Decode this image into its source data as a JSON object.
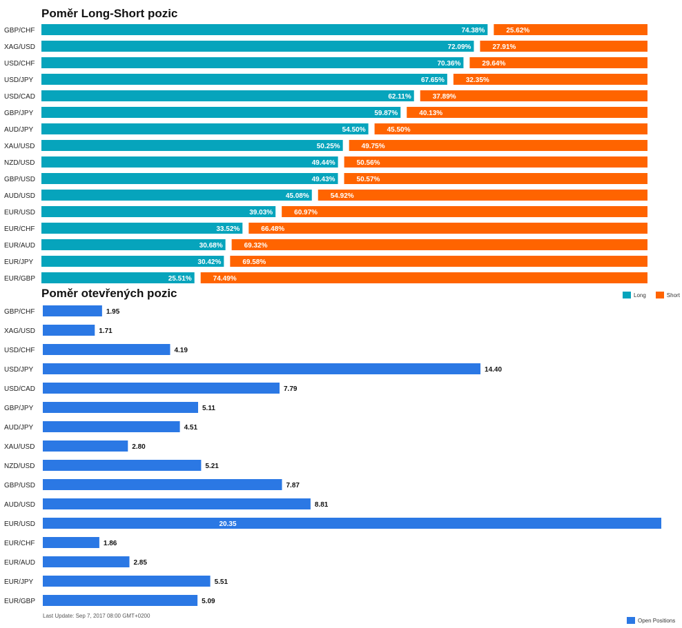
{
  "chart_data": [
    {
      "type": "bar",
      "orientation": "horizontal",
      "stacked": true,
      "title": "Poměr Long-Short pozic",
      "categories": [
        "GBP/CHF",
        "XAG/USD",
        "USD/CHF",
        "USD/JPY",
        "USD/CAD",
        "GBP/JPY",
        "AUD/JPY",
        "XAU/USD",
        "NZD/USD",
        "GBP/USD",
        "AUD/USD",
        "EUR/USD",
        "EUR/CHF",
        "EUR/AUD",
        "EUR/JPY",
        "EUR/GBP"
      ],
      "series": [
        {
          "name": "Long",
          "color": "#06a4bc",
          "values": [
            74.38,
            72.09,
            70.36,
            67.65,
            62.11,
            59.87,
            54.5,
            50.25,
            49.44,
            49.43,
            45.08,
            39.03,
            33.52,
            30.68,
            30.42,
            25.51
          ],
          "labels": [
            "74.38%",
            "72.09%",
            "70.36%",
            "67.65%",
            "62.11%",
            "59.87%",
            "54.50%",
            "50.25%",
            "49.44%",
            "49.43%",
            "45.08%",
            "39.03%",
            "33.52%",
            "30.68%",
            "30.42%",
            "25.51%"
          ]
        },
        {
          "name": "Short",
          "color": "#ff6400",
          "values": [
            25.62,
            27.91,
            29.64,
            32.35,
            37.89,
            40.13,
            45.5,
            49.75,
            50.56,
            50.57,
            54.92,
            60.97,
            66.48,
            69.32,
            69.58,
            74.49
          ],
          "labels": [
            "25.62%",
            "27.91%",
            "29.64%",
            "32.35%",
            "37.89%",
            "40.13%",
            "45.50%",
            "49.75%",
            "50.56%",
            "50.57%",
            "54.92%",
            "60.97%",
            "66.48%",
            "69.32%",
            "69.58%",
            "74.49%"
          ]
        }
      ],
      "xlim": [
        0,
        100
      ],
      "legend": "bottom-right"
    },
    {
      "type": "bar",
      "orientation": "horizontal",
      "title": "Poměr otevřených pozic",
      "categories": [
        "GBP/CHF",
        "XAG/USD",
        "USD/CHF",
        "USD/JPY",
        "USD/CAD",
        "GBP/JPY",
        "AUD/JPY",
        "XAU/USD",
        "NZD/USD",
        "GBP/USD",
        "AUD/USD",
        "EUR/USD",
        "EUR/CHF",
        "EUR/AUD",
        "EUR/JPY",
        "EUR/GBP"
      ],
      "series": [
        {
          "name": "Open Positions",
          "color": "#2b78e4",
          "values": [
            1.95,
            1.71,
            4.19,
            14.4,
            7.79,
            5.11,
            4.51,
            2.8,
            5.21,
            7.87,
            8.81,
            20.35,
            1.86,
            2.85,
            5.51,
            5.09
          ],
          "labels": [
            "1.95",
            "1.71",
            "4.19",
            "14.40",
            "7.79",
            "5.11",
            "4.51",
            "2.80",
            "5.21",
            "7.87",
            "8.81",
            "20.35",
            "1.86",
            "2.85",
            "5.51",
            "5.09"
          ]
        }
      ],
      "legend": "bottom-right"
    }
  ],
  "footer": "Last Update: Sep 7, 2017 08:00 GMT+0200"
}
